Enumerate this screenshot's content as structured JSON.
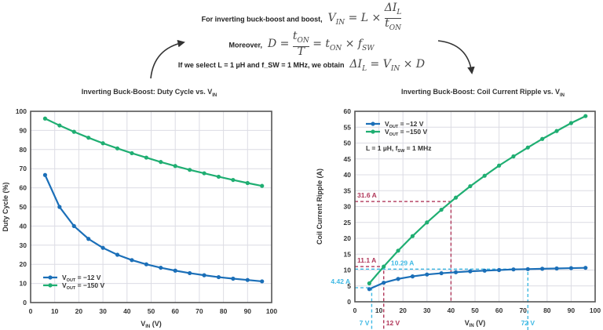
{
  "equations": {
    "line1_text": "For inverting buck-boost and boost,",
    "line1_math": "V_IN = L × ΔI_L / t_ON",
    "line2_text": "Moreover,",
    "line2_math": "D = t_ON / T = t_ON × f_SW",
    "line3_text": "If we select L = 1 µH and f_SW = 1 MHz, we obtain",
    "line3_math": "ΔI_L = V_IN × D"
  },
  "colors": {
    "blue": "#1b6fb8",
    "green": "#1fae72",
    "red_annot": "#b0375a",
    "cyan_annot": "#3fb9e4",
    "grid": "#dcdce4",
    "axis": "#555555"
  },
  "chart_data": [
    {
      "type": "line",
      "title": "Inverting Buck-Boost: Duty Cycle vs. VIN",
      "xlabel": "VIN (V)",
      "ylabel": "Duty Cycle (%)",
      "xlim": [
        0,
        100
      ],
      "ylim": [
        0,
        100
      ],
      "xticks": [
        0,
        10,
        20,
        30,
        40,
        50,
        60,
        70,
        80,
        90,
        100
      ],
      "yticks": [
        0,
        10,
        20,
        30,
        40,
        50,
        60,
        70,
        80,
        90,
        100
      ],
      "grid": true,
      "legend_position": "lower left",
      "x": [
        6,
        12,
        18,
        24,
        30,
        36,
        42,
        48,
        54,
        60,
        66,
        72,
        78,
        84,
        90,
        96
      ],
      "series": [
        {
          "name": "VOUT = -12 V",
          "color": "#1b6fb8",
          "values": [
            66.7,
            50.0,
            40.0,
            33.3,
            28.6,
            25.0,
            22.2,
            20.0,
            18.2,
            16.7,
            15.4,
            14.3,
            13.3,
            12.5,
            11.8,
            11.1
          ]
        },
        {
          "name": "VOUT = -150 V",
          "color": "#1fae72",
          "values": [
            96.2,
            92.6,
            89.3,
            86.2,
            83.3,
            80.6,
            78.1,
            75.8,
            73.5,
            71.4,
            69.4,
            67.6,
            65.8,
            64.1,
            62.5,
            61.0
          ]
        }
      ]
    },
    {
      "type": "line",
      "title": "Inverting Buck-Boost: Coil Current Ripple vs. VIN",
      "xlabel": "VIN (V)",
      "ylabel": "Coil Current Ripple (A)",
      "xlim": [
        0,
        100
      ],
      "ylim": [
        0,
        60
      ],
      "xticks": [
        0,
        10,
        20,
        30,
        40,
        50,
        60,
        70,
        80,
        90,
        100
      ],
      "yticks": [
        0,
        5,
        10,
        15,
        20,
        25,
        30,
        35,
        40,
        45,
        50,
        55,
        60
      ],
      "grid": true,
      "legend_position": "upper left",
      "note": "L = 1 µH, fSW = 1 MHz",
      "x": [
        6,
        12,
        18,
        24,
        30,
        36,
        42,
        48,
        54,
        60,
        66,
        72,
        78,
        84,
        90,
        96
      ],
      "series": [
        {
          "name": "VOUT = -12 V",
          "color": "#1b6fb8",
          "values": [
            4.0,
            6.0,
            7.2,
            8.0,
            8.6,
            9.0,
            9.3,
            9.6,
            9.8,
            10.0,
            10.2,
            10.29,
            10.4,
            10.5,
            10.6,
            10.7
          ]
        },
        {
          "name": "VOUT = -150 V",
          "color": "#1fae72",
          "values": [
            5.8,
            11.1,
            16.1,
            20.7,
            25.0,
            29.0,
            32.8,
            36.4,
            39.7,
            42.9,
            45.8,
            48.6,
            51.3,
            53.8,
            56.3,
            58.5
          ]
        }
      ],
      "annotations": [
        {
          "label": "31.6 A",
          "x": 40,
          "y": 31.6,
          "color": "#b0375a"
        },
        {
          "label": "11.1 A",
          "x": 12,
          "y": 11.1,
          "color": "#b0375a"
        },
        {
          "label": "10.29 A",
          "x": 72,
          "y": 10.29,
          "color": "#3fb9e4"
        },
        {
          "label": "4.42 A",
          "x": 7,
          "y": 4.42,
          "color": "#3fb9e4"
        },
        {
          "label": "7 V",
          "x": 7,
          "color": "#3fb9e4"
        },
        {
          "label": "12 V",
          "x": 12,
          "color": "#b0375a"
        },
        {
          "label": "72 V",
          "x": 72,
          "color": "#3fb9e4"
        }
      ]
    }
  ],
  "labels": {
    "left_title": "Inverting Buck-Boost: Duty Cycle vs. V",
    "right_title": "Inverting Buck-Boost: Coil Current Ripple vs. V",
    "title_sub": "IN",
    "left_ylabel": "Duty Cycle (%)",
    "right_ylabel": "Coil Current Ripple (A)",
    "xlabel_main": "V",
    "xlabel_sub": "IN",
    "xlabel_unit": " (V)",
    "legend_v": "V",
    "legend_sub": "OUT",
    "legend_12": " = −12 V",
    "legend_150": " = −150 V",
    "note": "L = 1 µH, f",
    "note_sub": "SW",
    "note_end": " = 1 MHz"
  }
}
